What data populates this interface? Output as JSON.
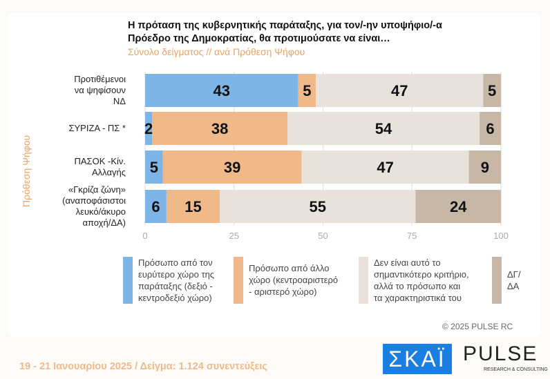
{
  "title_lines": [
    "Η πρόταση της κυβερνητικής παράταξης, για τον/-ην υποψήφιο/-α",
    "Πρόεδρο της Δημοκρατίας, θα προτιμούσατε να είναι…"
  ],
  "subtitle": "Σύνολο δείγματος // ανά Πρόθεση Ψήφου",
  "copyright": "© 2025 PULSE RC",
  "footer": "19 - 21 Ιανουαρίου 2025  /  Δείγμα:  1.124 συνεντεύξεις",
  "logos": {
    "skai": "ΣΚΑΪ",
    "pulse": "PULSE",
    "pulse_sub": "RESEARCH & CONSULTING"
  },
  "chart_data": {
    "type": "bar",
    "orientation": "horizontal",
    "stacked": true,
    "ylabel": "Πρόθεση Ψήφου",
    "categories": [
      "Προτιθέμενοι\nνα ψηφίσουν\nΝΔ",
      "ΣΥΡΙΖΑ - ΠΣ *",
      "ΠΑΣΟΚ -Κίν.\nΑλλαγής",
      "«Γκρίζα ζώνη»\n(αναποφάσιστοι\nλευκό/άκυρο\nαποχή/ΔΑ)"
    ],
    "xlim": [
      0,
      100
    ],
    "xticks": [
      0,
      25,
      50,
      75,
      100
    ],
    "legend_position": "bottom",
    "series": [
      {
        "name": "Πρόσωπο από τον ευρύτερο χώρο της παράταξης (δεξιό - κεντροδεξιό χώρο)",
        "color": "#7db5e6",
        "values": [
          43,
          2,
          5,
          6
        ]
      },
      {
        "name": "Πρόσωπο από άλλο χώρο (κεντροαριστερό - αριστερό χώρο)",
        "color": "#f0b98a",
        "values": [
          5,
          38,
          39,
          15
        ]
      },
      {
        "name": "Δεν είναι αυτό το σημαντικότερο κριτήριο, αλλά το πρόσωπο και τα χαρακτηριστικά του",
        "color": "#e7e2db",
        "values": [
          47,
          54,
          47,
          55
        ]
      },
      {
        "name": "ΔΓ/ΔΑ",
        "color": "#c7b7a7",
        "values": [
          5,
          6,
          9,
          24
        ]
      }
    ]
  }
}
